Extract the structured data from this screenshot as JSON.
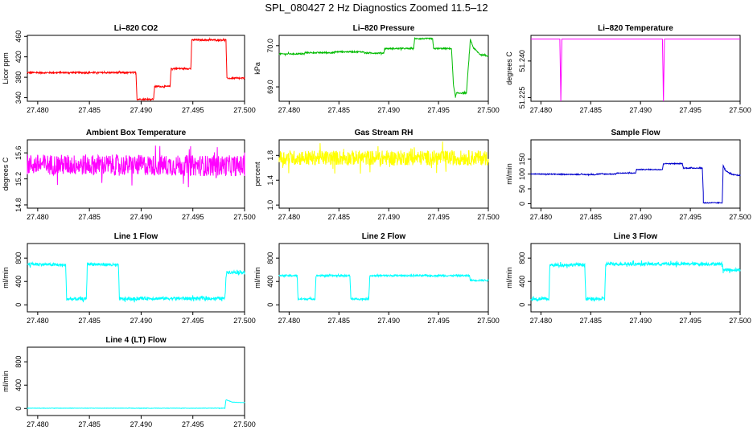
{
  "figure": {
    "title": "SPL_080427  2 Hz Diagnostics Zoomed 11.5–12"
  },
  "chart_data": [
    {
      "type": "line",
      "title": "Li–820 CO2",
      "ylabel": "Licor ppm",
      "color": "#ff0000",
      "xlim": [
        27.479,
        27.5
      ],
      "ylim": [
        333,
        462
      ],
      "x_ticks": [
        "27.480",
        "27.485",
        "27.490",
        "27.495",
        "27.500"
      ],
      "y_ticks": [
        "340",
        "380",
        "420",
        "460"
      ],
      "series": [
        {
          "name": "CO2",
          "noise": 1.5,
          "x": [
            27.479,
            27.4895,
            27.4896,
            27.4912,
            27.4913,
            27.4928,
            27.4929,
            27.4948,
            27.4949,
            27.4982,
            27.4983,
            27.5
          ],
          "y": [
            389,
            389,
            337,
            337,
            362,
            362,
            397,
            397,
            453,
            453,
            378,
            378
          ]
        }
      ]
    },
    {
      "type": "line",
      "title": "Li–820 Pressure",
      "ylabel": "kPa",
      "color": "#00bb00",
      "xlim": [
        27.479,
        27.5
      ],
      "ylim": [
        68.65,
        70.25
      ],
      "x_ticks": [
        "27.480",
        "27.485",
        "27.490",
        "27.495",
        "27.500"
      ],
      "y_ticks": [
        "69.0",
        "70.0"
      ],
      "series": [
        {
          "name": "Pressure",
          "noise": 0.015,
          "x": [
            27.479,
            27.4815,
            27.4816,
            27.4845,
            27.4846,
            27.4875,
            27.4876,
            27.4895,
            27.4896,
            27.4925,
            27.4926,
            27.4944,
            27.4945,
            27.4963,
            27.4965,
            27.4967,
            27.4968,
            27.4978,
            27.4982,
            27.4985,
            27.4992,
            27.5
          ],
          "y": [
            69.8,
            69.8,
            69.83,
            69.83,
            69.85,
            69.85,
            69.82,
            69.82,
            69.93,
            69.93,
            70.17,
            70.17,
            69.93,
            69.93,
            69.05,
            68.75,
            68.85,
            68.85,
            70.15,
            69.95,
            69.78,
            69.75
          ]
        }
      ]
    },
    {
      "type": "line",
      "title": "Li–820 Temperature",
      "ylabel": "degrees C",
      "color": "#ff00ff",
      "xlim": [
        27.479,
        27.5
      ],
      "ylim": [
        51.2235,
        51.2505
      ],
      "x_ticks": [
        "27.480",
        "27.485",
        "27.490",
        "27.495",
        "27.500"
      ],
      "y_ticks": [
        "51.225",
        "51.240"
      ],
      "series": [
        {
          "name": "Temperature",
          "noise": 0,
          "x": [
            27.479,
            27.4819,
            27.482,
            27.4821,
            27.4922,
            27.4923,
            27.4924,
            27.5
          ],
          "y": [
            51.249,
            51.249,
            51.2235,
            51.249,
            51.249,
            51.2235,
            51.249,
            51.249
          ]
        }
      ]
    },
    {
      "type": "line",
      "title": "Ambient Box Temperature",
      "ylabel": "degrees C",
      "color": "#ff00ff",
      "xlim": [
        27.479,
        27.5
      ],
      "ylim": [
        14.75,
        15.8
      ],
      "x_ticks": [
        "27.480",
        "27.485",
        "27.490",
        "27.495",
        "27.500"
      ],
      "y_ticks": [
        "14.8",
        "15.2",
        "15.6"
      ],
      "series": [
        {
          "name": "Box temperature",
          "noise": 0.16,
          "x": [
            27.479,
            27.5
          ],
          "y": [
            15.42,
            15.4
          ]
        }
      ]
    },
    {
      "type": "line",
      "title": "Gas Stream RH",
      "ylabel": "percent",
      "color": "#ffff00",
      "xlim": [
        27.479,
        27.5
      ],
      "ylim": [
        0.95,
        2.05
      ],
      "x_ticks": [
        "27.480",
        "27.485",
        "27.490",
        "27.495",
        "27.500"
      ],
      "y_ticks": [
        "1.0",
        "1.4",
        "1.8"
      ],
      "series": [
        {
          "name": "RH",
          "noise": 0.12,
          "x": [
            27.479,
            27.5
          ],
          "y": [
            1.76,
            1.76
          ]
        }
      ]
    },
    {
      "type": "line",
      "title": "Sample Flow",
      "ylabel": "ml/min",
      "color": "#0000cc",
      "xlim": [
        27.479,
        27.5
      ],
      "ylim": [
        -15,
        215
      ],
      "x_ticks": [
        "27.480",
        "27.485",
        "27.490",
        "27.495",
        "27.500"
      ],
      "y_ticks": [
        "0",
        "50",
        "100",
        "150"
      ],
      "series": [
        {
          "name": "Sample flow",
          "noise": 1.5,
          "x": [
            27.479,
            27.4855,
            27.4856,
            27.4875,
            27.4876,
            27.4895,
            27.4896,
            27.4922,
            27.4923,
            27.4942,
            27.4943,
            27.4962,
            27.4963,
            27.4963,
            27.4982,
            27.4983,
            27.4985,
            27.4992,
            27.5
          ],
          "y": [
            100,
            98,
            100,
            100,
            103,
            103,
            115,
            115,
            135,
            135,
            120,
            120,
            40,
            3,
            3,
            130,
            112,
            98,
            95
          ]
        }
      ]
    },
    {
      "type": "line",
      "title": "Line 1 Flow",
      "ylabel": "ml/min",
      "color": "#00ffff",
      "xlim": [
        27.479,
        27.5
      ],
      "ylim": [
        -120,
        1050
      ],
      "x_ticks": [
        "27.480",
        "27.485",
        "27.490",
        "27.495",
        "27.500"
      ],
      "y_ticks": [
        "0",
        "400",
        "800"
      ],
      "series": [
        {
          "name": "Line 1",
          "noise": 28,
          "x": [
            27.479,
            27.4827,
            27.4828,
            27.4847,
            27.4848,
            27.4878,
            27.4879,
            27.4895,
            27.4896,
            27.4981,
            27.4982,
            27.4983,
            27.5
          ],
          "y": [
            700,
            680,
            100,
            100,
            700,
            680,
            100,
            100,
            110,
            110,
            480,
            560,
            560
          ]
        }
      ]
    },
    {
      "type": "line",
      "title": "Line 2 Flow",
      "ylabel": "ml/min",
      "color": "#00ffff",
      "xlim": [
        27.479,
        27.5
      ],
      "ylim": [
        -120,
        1050
      ],
      "x_ticks": [
        "27.480",
        "27.485",
        "27.490",
        "27.495",
        "27.500"
      ],
      "y_ticks": [
        "0",
        "400",
        "800"
      ],
      "series": [
        {
          "name": "Line 2",
          "noise": 15,
          "x": [
            27.479,
            27.4808,
            27.4809,
            27.4826,
            27.4827,
            27.4861,
            27.4862,
            27.488,
            27.4881,
            27.4981,
            27.4982,
            27.5
          ],
          "y": [
            500,
            500,
            100,
            100,
            500,
            500,
            100,
            100,
            500,
            500,
            420,
            420
          ]
        }
      ]
    },
    {
      "type": "line",
      "title": "Line 3 Flow",
      "ylabel": "ml/min",
      "color": "#00ffff",
      "xlim": [
        27.479,
        27.5
      ],
      "ylim": [
        -120,
        1050
      ],
      "x_ticks": [
        "27.480",
        "27.485",
        "27.490",
        "27.495",
        "27.500"
      ],
      "y_ticks": [
        "0",
        "400",
        "800"
      ],
      "series": [
        {
          "name": "Line 3",
          "noise": 28,
          "x": [
            27.479,
            27.4808,
            27.4809,
            27.4844,
            27.4845,
            27.4864,
            27.4865,
            27.4982,
            27.4983,
            27.5
          ],
          "y": [
            100,
            100,
            680,
            690,
            100,
            100,
            700,
            700,
            600,
            600
          ]
        }
      ]
    },
    {
      "type": "line",
      "title": "Line 4 (LT) Flow",
      "ylabel": "ml/min",
      "color": "#00ffff",
      "xlim": [
        27.479,
        27.5
      ],
      "ylim": [
        -120,
        1050
      ],
      "x_ticks": [
        "27.480",
        "27.485",
        "27.490",
        "27.495",
        "27.500"
      ],
      "y_ticks": [
        "0",
        "400",
        "800"
      ],
      "series": [
        {
          "name": "Line 4",
          "noise": 3,
          "x": [
            27.479,
            27.4981,
            27.4982,
            27.4988,
            27.5
          ],
          "y": [
            5,
            5,
            150,
            110,
            100
          ]
        }
      ]
    }
  ]
}
